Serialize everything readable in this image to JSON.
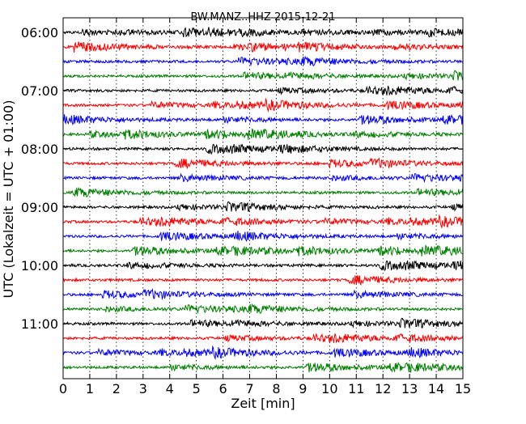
{
  "chart_data": {
    "type": "line",
    "title": "BW.MANZ..HHZ 2015-12-21",
    "xlabel": "Zeit  [min]",
    "ylabel": "UTC (Lokalzeit = UTC + 01:00)",
    "xlim": [
      0,
      15
    ],
    "x_ticks": [
      "0",
      "1",
      "2",
      "3",
      "4",
      "5",
      "6",
      "7",
      "8",
      "9",
      "10",
      "11",
      "12",
      "13",
      "14",
      "15"
    ],
    "y_ticks": [
      "06:00",
      "07:00",
      "08:00",
      "09:00",
      "10:00",
      "11:00"
    ],
    "grid": "vertical dotted lines at each minute",
    "trace_interval_minutes": 15,
    "trace_count": 24,
    "trace_colors": [
      "#000000",
      "#ff0000",
      "#0000ff",
      "#008000"
    ]
  }
}
